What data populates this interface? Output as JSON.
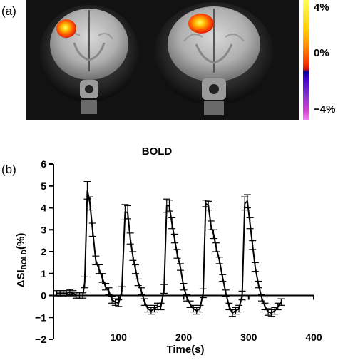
{
  "figure": {
    "panel_a_label": "(a)",
    "panel_b_label": "(b)"
  },
  "colorbar": {
    "max_label": "4%",
    "mid_label": "0%",
    "min_label": "−4%"
  },
  "chart_data": {
    "type": "line",
    "title": "BOLD",
    "xlabel": "Time(s)",
    "ylabel_main": "ΔSI",
    "ylabel_sub": "BOLD",
    "ylabel_suffix": "(%)",
    "xlim": [
      0,
      400
    ],
    "ylim": [
      -2,
      6
    ],
    "xticks": [
      100,
      200,
      300,
      400
    ],
    "yticks": [
      -2,
      -1,
      0,
      1,
      2,
      3,
      4,
      5,
      6
    ],
    "series": [
      {
        "x": [
          5,
          10,
          15,
          20,
          25,
          30,
          35,
          40,
          45,
          48,
          52,
          56,
          60,
          65,
          70,
          75,
          80,
          85,
          90,
          95,
          100,
          105,
          110,
          114,
          118,
          122,
          126,
          130,
          135,
          140,
          145,
          150,
          155,
          160,
          165,
          170,
          174,
          178,
          182,
          186,
          190,
          195,
          200,
          205,
          210,
          215,
          220,
          225,
          230,
          234,
          238,
          242,
          246,
          250,
          255,
          260,
          265,
          270,
          275,
          280,
          285,
          290,
          294,
          298,
          302,
          306,
          310,
          315,
          320,
          325,
          330,
          335,
          340,
          345,
          350
        ],
        "y": [
          0.1,
          0.1,
          0.1,
          0.1,
          0.15,
          0.1,
          0.0,
          0.0,
          0.0,
          0.6,
          4.8,
          4.2,
          3.0,
          1.6,
          1.2,
          0.8,
          0.4,
          0.2,
          -0.2,
          -0.3,
          -0.35,
          0.2,
          3.8,
          3.8,
          2.6,
          1.8,
          1.2,
          0.6,
          0.2,
          -0.3,
          -0.6,
          -0.7,
          -0.6,
          -0.5,
          -0.5,
          0.3,
          4.1,
          4.1,
          3.3,
          2.6,
          1.9,
          1.3,
          0.4,
          -0.1,
          -0.4,
          -0.6,
          -0.7,
          -0.6,
          0.1,
          4.2,
          4.1,
          3.2,
          2.8,
          2.2,
          1.6,
          0.8,
          0.1,
          -0.5,
          -0.8,
          -0.7,
          -0.6,
          0.0,
          4.2,
          4.3,
          3.3,
          2.3,
          1.3,
          0.5,
          -0.1,
          -0.5,
          -0.75,
          -0.8,
          -0.7,
          -0.5,
          -0.3
        ],
        "err": [
          0.12,
          0.12,
          0.12,
          0.12,
          0.12,
          0.12,
          0.12,
          0.12,
          0.12,
          0.25,
          0.4,
          0.3,
          0.3,
          0.2,
          0.2,
          0.2,
          0.15,
          0.15,
          0.15,
          0.15,
          0.15,
          0.2,
          0.35,
          0.3,
          0.25,
          0.2,
          0.2,
          0.15,
          0.15,
          0.15,
          0.15,
          0.15,
          0.15,
          0.15,
          0.15,
          0.2,
          0.3,
          0.25,
          0.25,
          0.2,
          0.2,
          0.15,
          0.15,
          0.15,
          0.15,
          0.15,
          0.15,
          0.15,
          0.2,
          0.15,
          0.2,
          0.2,
          0.2,
          0.2,
          0.15,
          0.15,
          0.15,
          0.15,
          0.15,
          0.15,
          0.15,
          0.2,
          0.3,
          0.3,
          0.25,
          0.2,
          0.2,
          0.15,
          0.15,
          0.15,
          0.15,
          0.15,
          0.15,
          0.15,
          0.15
        ]
      }
    ]
  }
}
